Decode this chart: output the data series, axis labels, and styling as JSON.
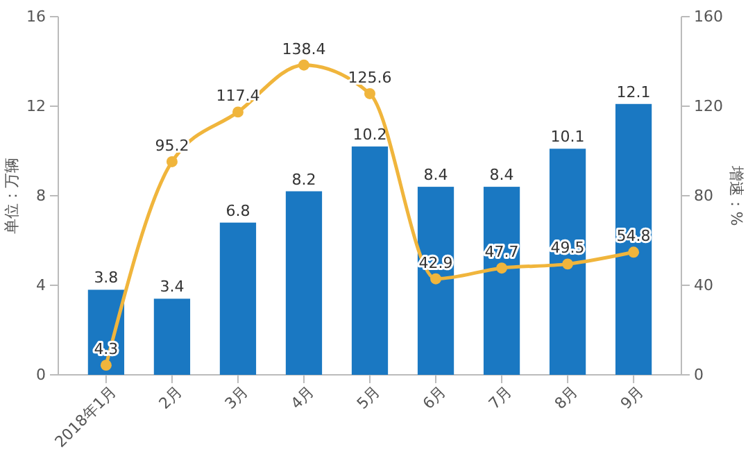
{
  "chart_data": {
    "type": "bar",
    "categories": [
      "2018年1月",
      "2月",
      "3月",
      "4月",
      "5月",
      "6月",
      "7月",
      "8月",
      "9月"
    ],
    "series": [
      {
        "color": "#1a78c2",
        "values": [
          3.8,
          3.4,
          6.8,
          8.2,
          10.2,
          8.4,
          8.4,
          10.1,
          12.1
        ]
      },
      {
        "type": "line",
        "axis": "y2",
        "color": "#f0b53c",
        "marker": "circle",
        "values": [
          4.3,
          95.2,
          117.4,
          138.4,
          125.6,
          42.9,
          47.7,
          49.5,
          54.8
        ]
      }
    ],
    "ylabel": "单位：万辆",
    "y2label": "增速：%",
    "ylim": [
      0,
      16
    ],
    "yticks": [
      0,
      4,
      8,
      12,
      16
    ],
    "y2lim": [
      0,
      160
    ],
    "y2ticks": [
      0,
      40,
      80,
      120,
      160
    ],
    "data_labels": true,
    "grid": false
  }
}
